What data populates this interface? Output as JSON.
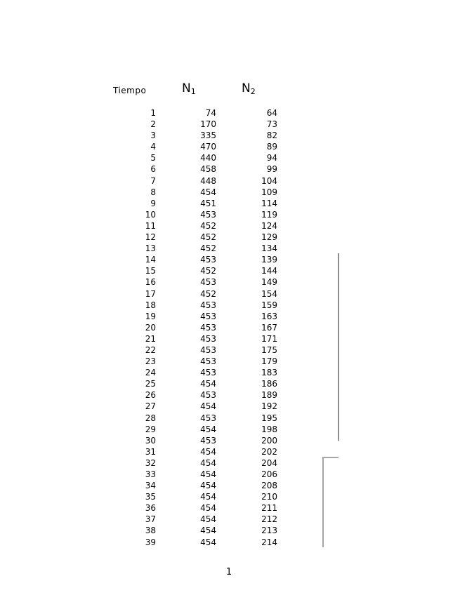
{
  "header": {
    "tiempo": "Tiempo",
    "n1": {
      "base": "N",
      "sub": "1"
    },
    "n2": {
      "base": "N",
      "sub": "2"
    }
  },
  "table": {
    "columns": [
      "Tiempo",
      "N1",
      "N2"
    ],
    "rows": [
      [
        1,
        74,
        64
      ],
      [
        2,
        170,
        73
      ],
      [
        3,
        335,
        82
      ],
      [
        4,
        470,
        89
      ],
      [
        5,
        440,
        94
      ],
      [
        6,
        458,
        99
      ],
      [
        7,
        448,
        104
      ],
      [
        8,
        454,
        109
      ],
      [
        9,
        451,
        114
      ],
      [
        10,
        453,
        119
      ],
      [
        11,
        452,
        124
      ],
      [
        12,
        452,
        129
      ],
      [
        13,
        452,
        134
      ],
      [
        14,
        453,
        139
      ],
      [
        15,
        452,
        144
      ],
      [
        16,
        453,
        149
      ],
      [
        17,
        452,
        154
      ],
      [
        18,
        453,
        159
      ],
      [
        19,
        453,
        163
      ],
      [
        20,
        453,
        167
      ],
      [
        21,
        453,
        171
      ],
      [
        22,
        453,
        175
      ],
      [
        23,
        453,
        179
      ],
      [
        24,
        453,
        183
      ],
      [
        25,
        454,
        186
      ],
      [
        26,
        453,
        189
      ],
      [
        27,
        454,
        192
      ],
      [
        28,
        453,
        195
      ],
      [
        29,
        454,
        198
      ],
      [
        30,
        453,
        200
      ],
      [
        31,
        454,
        202
      ],
      [
        32,
        454,
        204
      ],
      [
        33,
        454,
        206
      ],
      [
        34,
        454,
        208
      ],
      [
        35,
        454,
        210
      ],
      [
        36,
        454,
        211
      ],
      [
        37,
        454,
        212
      ],
      [
        38,
        454,
        213
      ],
      [
        39,
        454,
        214
      ]
    ]
  },
  "annotations": {
    "vline_color": "#8d8d8d",
    "bracket_color": "#a5a5a5"
  },
  "footer": {
    "page_number": "1"
  }
}
